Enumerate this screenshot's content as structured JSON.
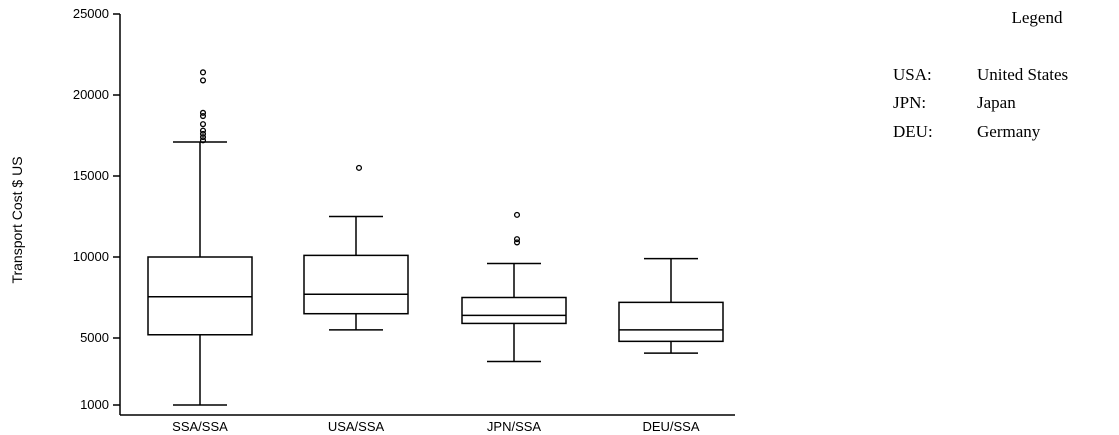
{
  "chart_data": {
    "type": "box",
    "ylabel": "Transport Cost $ US",
    "yticks": [
      1000,
      5000,
      10000,
      15000,
      20000,
      25000
    ],
    "categories": [
      "SSA/SSA",
      "USA/SSA",
      "JPN/SSA",
      "DEU/SSA"
    ],
    "boxes": [
      {
        "category": "SSA/SSA",
        "whisker_low": 1000,
        "q1": 5200,
        "median": 7550,
        "q3": 10000,
        "whisker_high": 17100,
        "outliers": [
          17200,
          17400,
          17600,
          17800,
          18200,
          18700,
          18900,
          20900,
          21400
        ]
      },
      {
        "category": "USA/SSA",
        "whisker_low": 5500,
        "q1": 6500,
        "median": 7700,
        "q3": 10100,
        "whisker_high": 12500,
        "outliers": [
          15500
        ]
      },
      {
        "category": "JPN/SSA",
        "whisker_low": 3600,
        "q1": 5900,
        "median": 6400,
        "q3": 7500,
        "whisker_high": 9600,
        "outliers": [
          10900,
          11100,
          12600
        ]
      },
      {
        "category": "DEU/SSA",
        "whisker_low": 4100,
        "q1": 4800,
        "median": 5500,
        "q3": 7200,
        "whisker_high": 9900,
        "outliers": []
      }
    ],
    "legend": {
      "title": "Legend",
      "entries": [
        {
          "code": "USA:",
          "name": "United States"
        },
        {
          "code": "JPN:",
          "name": "Japan"
        },
        {
          "code": "DEU:",
          "name": "Germany"
        }
      ],
      "position": "top-right"
    },
    "grid": false
  }
}
